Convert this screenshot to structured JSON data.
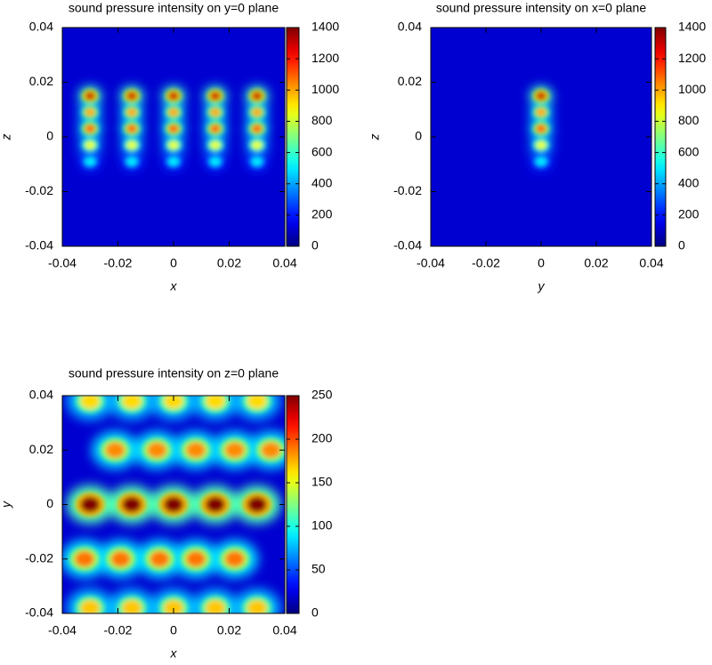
{
  "chart_data": [
    {
      "type": "heatmap",
      "title": "sound pressure intensity on y=0 plane",
      "xlabel": "x",
      "ylabel": "z",
      "xlim": [
        -0.04,
        0.04
      ],
      "ylim": [
        -0.04,
        0.04
      ],
      "xticks": [
        -0.04,
        -0.02,
        0,
        0.02,
        0.04
      ],
      "yticks": [
        -0.04,
        -0.02,
        0,
        0.02,
        0.04
      ],
      "cblim": [
        0,
        1400
      ],
      "cbticks": [
        0,
        200,
        400,
        600,
        800,
        1000,
        1200,
        1400
      ],
      "colormap": "jet",
      "x": [
        -0.03,
        -0.015,
        0,
        0.015,
        0.03,
        -0.03,
        -0.015,
        0,
        0.015,
        0.03,
        -0.03,
        -0.015,
        0,
        0.015,
        0.03,
        -0.03,
        -0.015,
        0,
        0.015,
        0.03,
        -0.03,
        -0.015,
        0,
        0.015,
        0.03
      ],
      "y": [
        0.015,
        0.015,
        0.015,
        0.015,
        0.015,
        0.009,
        0.009,
        0.009,
        0.009,
        0.009,
        0.003,
        0.003,
        0.003,
        0.003,
        0.003,
        -0.003,
        -0.003,
        -0.003,
        -0.003,
        -0.003,
        -0.009,
        -0.009,
        -0.009,
        -0.009,
        -0.009
      ],
      "values": [
        1300,
        1300,
        1300,
        1300,
        1300,
        1000,
        1000,
        1000,
        1000,
        1000,
        1100,
        1100,
        1100,
        1100,
        1100,
        850,
        850,
        850,
        850,
        850,
        500,
        500,
        500,
        500,
        500
      ]
    },
    {
      "type": "heatmap",
      "title": "sound pressure intensity on x=0 plane",
      "xlabel": "y",
      "ylabel": "z",
      "xlim": [
        -0.04,
        0.04
      ],
      "ylim": [
        -0.04,
        0.04
      ],
      "xticks": [
        -0.04,
        -0.02,
        0,
        0.02,
        0.04
      ],
      "yticks": [
        -0.04,
        -0.02,
        0,
        0.02,
        0.04
      ],
      "cblim": [
        0,
        1400
      ],
      "cbticks": [
        0,
        200,
        400,
        600,
        800,
        1000,
        1200,
        1400
      ],
      "colormap": "jet",
      "x": [
        0,
        0,
        0,
        0,
        0
      ],
      "y": [
        0.015,
        0.009,
        0.003,
        -0.003,
        -0.009
      ],
      "values": [
        1300,
        1000,
        1100,
        850,
        500
      ]
    },
    {
      "type": "heatmap",
      "title": "sound pressure intensity on z=0 plane",
      "xlabel": "x",
      "ylabel": "y",
      "xlim": [
        -0.04,
        0.04
      ],
      "ylim": [
        -0.04,
        0.04
      ],
      "xticks": [
        -0.04,
        -0.02,
        0,
        0.02,
        0.04
      ],
      "yticks": [
        -0.04,
        -0.02,
        0,
        0.02,
        0.04
      ],
      "cblim": [
        0,
        250
      ],
      "cbticks": [
        0,
        50,
        100,
        150,
        200,
        250
      ],
      "colormap": "jet",
      "x": [
        -0.03,
        -0.015,
        0,
        0.015,
        0.03,
        -0.021,
        -0.006,
        0.008,
        0.022,
        0.035,
        -0.032,
        -0.019,
        -0.005,
        0.008,
        0.022,
        -0.03,
        -0.015,
        0,
        0.015,
        0.03,
        -0.03,
        -0.015,
        0,
        0.015,
        0.03
      ],
      "y": [
        0,
        0,
        0,
        0,
        0,
        0.02,
        0.02,
        0.02,
        0.02,
        0.02,
        -0.02,
        -0.02,
        -0.02,
        -0.02,
        -0.02,
        0.038,
        0.038,
        0.038,
        0.038,
        0.038,
        -0.038,
        -0.038,
        -0.038,
        -0.038,
        -0.038
      ],
      "values": [
        250,
        250,
        250,
        250,
        250,
        185,
        185,
        185,
        185,
        185,
        190,
        190,
        190,
        190,
        190,
        165,
        165,
        165,
        165,
        165,
        170,
        170,
        170,
        170,
        170
      ]
    }
  ]
}
